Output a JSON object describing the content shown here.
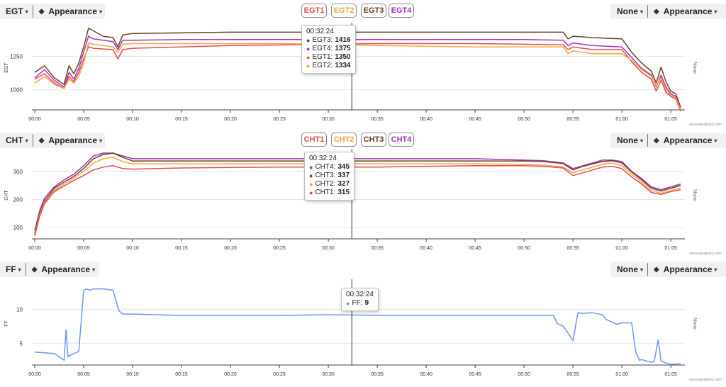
{
  "colors": {
    "EGT1": "#e84a4a",
    "EGT2": "#f5a640",
    "EGT3": "#6b4226",
    "EGT4": "#a235b8",
    "CHT1": "#e84a4a",
    "CHT2": "#f5a640",
    "CHT3": "#6b4226",
    "CHT4": "#a235b8",
    "FF": "#6d97f2"
  },
  "x_ticks": [
    "00:00",
    "00:05",
    "00:10",
    "00:15",
    "00:20",
    "00:25",
    "00:30",
    "00:35",
    "00:40",
    "00:45",
    "00:50",
    "00:55",
    "01:00",
    "01:05"
  ],
  "panels": [
    {
      "left_dropdown": "EGT",
      "appearance": "Appearance",
      "right_dropdown": "None",
      "right_appearance": "Appearance",
      "ylabel": "EGT",
      "right_axis_label": "None",
      "watermark": "savvyanalysis.com",
      "y_ticks": [
        "1000",
        "1250"
      ],
      "chips": [
        "EGT1",
        "EGT2",
        "EGT3",
        "EGT4"
      ],
      "tooltip": {
        "time": "00:32:24",
        "rows": [
          {
            "name": "EGT3",
            "value": "1416"
          },
          {
            "name": "EGT4",
            "value": "1375"
          },
          {
            "name": "EGT1",
            "value": "1350"
          },
          {
            "name": "EGT2",
            "value": "1334"
          }
        ]
      }
    },
    {
      "left_dropdown": "CHT",
      "appearance": "Appearance",
      "right_dropdown": "None",
      "right_appearance": "Appearance",
      "ylabel": "CHT",
      "right_axis_label": "None",
      "watermark": "savvyanalysis.com",
      "y_ticks": [
        "100",
        "200",
        "300"
      ],
      "chips": [
        "CHT1",
        "CHT2",
        "CHT3",
        "CHT4"
      ],
      "tooltip": {
        "time": "00:32:24",
        "rows": [
          {
            "name": "CHT4",
            "value": "345"
          },
          {
            "name": "CHT3",
            "value": "337"
          },
          {
            "name": "CHT2",
            "value": "327"
          },
          {
            "name": "CHT1",
            "value": "315"
          }
        ]
      }
    },
    {
      "left_dropdown": "FF",
      "appearance": "Appearance",
      "right_dropdown": "None",
      "right_appearance": "Appearance",
      "ylabel": "FF",
      "right_axis_label": "None",
      "watermark": "savvyanalysis.com",
      "y_ticks": [
        "5",
        "10"
      ],
      "chips": [],
      "tooltip": {
        "time": "00:32:24",
        "rows": [
          {
            "name": "FF",
            "value": "9"
          }
        ]
      }
    }
  ],
  "chart_data": [
    {
      "type": "line",
      "xlabel": "",
      "ylabel": "EGT",
      "x": [
        0,
        1,
        2,
        3,
        3.5,
        4,
        4.5,
        5,
        5.5,
        6,
        7,
        8,
        8.5,
        9,
        10,
        15,
        20,
        25,
        30,
        35,
        40,
        45,
        50,
        54,
        54.5,
        55,
        57,
        60,
        61,
        62,
        63,
        63.5,
        64,
        64.5,
        65,
        65.5,
        66
      ],
      "ylim": [
        850,
        1480
      ],
      "series": [
        {
          "name": "EGT3",
          "values": [
            1130,
            1180,
            1090,
            1040,
            1180,
            1120,
            1200,
            1320,
            1460,
            1440,
            1400,
            1390,
            1320,
            1410,
            1420,
            1425,
            1430,
            1430,
            1430,
            1430,
            1430,
            1430,
            1430,
            1430,
            1380,
            1400,
            1390,
            1380,
            1280,
            1200,
            1140,
            1050,
            1170,
            1060,
            990,
            970,
            870
          ]
        },
        {
          "name": "EGT4",
          "values": [
            1090,
            1150,
            1070,
            1020,
            1130,
            1080,
            1160,
            1280,
            1400,
            1380,
            1370,
            1360,
            1300,
            1370,
            1370,
            1375,
            1375,
            1375,
            1375,
            1375,
            1375,
            1375,
            1375,
            1370,
            1330,
            1350,
            1330,
            1320,
            1240,
            1160,
            1110,
            1020,
            1110,
            1020,
            970,
            950,
            860
          ]
        },
        {
          "name": "EGT1",
          "values": [
            1080,
            1120,
            1050,
            1010,
            1100,
            1060,
            1130,
            1230,
            1320,
            1310,
            1305,
            1300,
            1230,
            1300,
            1310,
            1320,
            1330,
            1335,
            1340,
            1345,
            1345,
            1345,
            1340,
            1335,
            1300,
            1320,
            1300,
            1300,
            1210,
            1130,
            1080,
            990,
            1070,
            980,
            950,
            930,
            840
          ]
        },
        {
          "name": "EGT2",
          "values": [
            1050,
            1100,
            1040,
            1010,
            1080,
            1050,
            1100,
            1200,
            1350,
            1340,
            1330,
            1320,
            1280,
            1340,
            1345,
            1345,
            1345,
            1345,
            1340,
            1330,
            1325,
            1320,
            1320,
            1320,
            1270,
            1290,
            1270,
            1270,
            1220,
            1150,
            1100,
            1030,
            1090,
            1000,
            960,
            940,
            850
          ]
        }
      ]
    },
    {
      "type": "line",
      "xlabel": "",
      "ylabel": "CHT",
      "x": [
        0,
        0.5,
        1,
        2,
        3,
        4,
        5,
        6,
        7,
        8,
        9,
        10,
        15,
        20,
        25,
        30,
        35,
        40,
        45,
        50,
        52,
        54,
        55,
        56,
        58,
        59,
        60,
        61,
        62,
        63,
        64,
        65,
        66
      ],
      "ylim": [
        60,
        370
      ],
      "series": [
        {
          "name": "CHT4",
          "values": [
            90,
            160,
            205,
            245,
            270,
            290,
            320,
            355,
            365,
            365,
            355,
            345,
            345,
            345,
            345,
            345,
            345,
            345,
            345,
            340,
            338,
            330,
            310,
            320,
            340,
            340,
            335,
            300,
            275,
            245,
            235,
            245,
            255
          ]
        },
        {
          "name": "CHT3",
          "values": [
            80,
            150,
            195,
            240,
            262,
            282,
            310,
            345,
            360,
            365,
            350,
            337,
            337,
            337,
            337,
            337,
            337,
            337,
            337,
            337,
            335,
            328,
            305,
            318,
            335,
            338,
            330,
            298,
            270,
            240,
            230,
            240,
            250
          ]
        },
        {
          "name": "CHT2",
          "values": [
            75,
            145,
            190,
            232,
            255,
            275,
            300,
            330,
            345,
            350,
            335,
            327,
            327,
            327,
            327,
            327,
            327,
            327,
            327,
            325,
            322,
            315,
            295,
            305,
            325,
            330,
            320,
            290,
            262,
            232,
            222,
            232,
            240
          ]
        },
        {
          "name": "CHT1",
          "values": [
            70,
            140,
            185,
            228,
            248,
            268,
            285,
            305,
            315,
            320,
            310,
            308,
            312,
            314,
            315,
            315,
            315,
            318,
            320,
            320,
            318,
            312,
            285,
            295,
            315,
            318,
            310,
            280,
            255,
            225,
            218,
            228,
            235
          ]
        }
      ]
    },
    {
      "type": "line",
      "xlabel": "",
      "ylabel": "FF",
      "x": [
        0,
        1,
        2,
        3,
        3.2,
        3.4,
        3.6,
        4,
        4.5,
        5,
        5.3,
        5.6,
        6,
        7,
        8,
        8.6,
        9,
        10,
        15,
        20,
        25,
        30,
        35,
        40,
        45,
        50,
        53,
        53.4,
        54,
        54.5,
        55,
        55.5,
        56,
        57,
        58,
        58.4,
        59,
        59.5,
        60,
        60.5,
        61,
        61.4,
        61.8,
        62,
        63,
        63.3,
        63.7,
        64,
        64.5,
        65,
        66
      ],
      "ylim": [
        1.8,
        14
      ],
      "series": [
        {
          "name": "FF",
          "values": [
            3.7,
            3.6,
            3.5,
            2.5,
            7,
            3,
            3.2,
            3.5,
            3.8,
            12.8,
            13,
            12.8,
            13,
            13,
            12.8,
            9.8,
            9.3,
            9.3,
            9.1,
            9.1,
            9.1,
            9.2,
            9.1,
            9.1,
            9.1,
            9.1,
            9.1,
            7.9,
            7.5,
            6.5,
            5.4,
            9.5,
            9.4,
            9.5,
            9.2,
            8.5,
            8.1,
            7.8,
            8,
            8,
            8,
            3.8,
            2.5,
            2.6,
            2.2,
            2.3,
            5.5,
            2.4,
            2.1,
            1.9,
            2.0
          ]
        }
      ]
    }
  ]
}
